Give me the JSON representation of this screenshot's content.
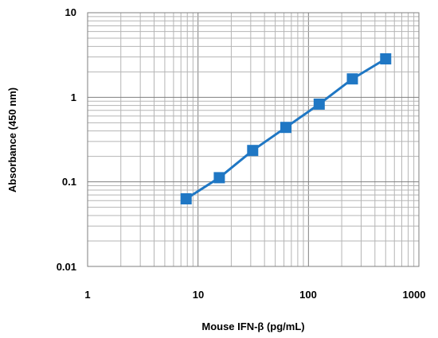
{
  "chart_data": {
    "type": "line",
    "xlabel": "Mouse IFN-β (pg/mL)",
    "ylabel": "Absorbance (450 nm)",
    "x_scale": "log",
    "y_scale": "log",
    "xlim": [
      1,
      1000
    ],
    "ylim": [
      0.01,
      10
    ],
    "x_ticks": [
      "1",
      "10",
      "100",
      "1000"
    ],
    "y_ticks": [
      "10",
      "1",
      "0.1",
      "0.01"
    ],
    "grid": true,
    "series_color": "#1f77c4",
    "marker": "square",
    "series": [
      {
        "x": [
          7.8,
          15.6,
          31.25,
          62.5,
          125,
          250,
          500
        ],
        "y": [
          0.063,
          0.112,
          0.235,
          0.44,
          0.83,
          1.65,
          2.85
        ]
      }
    ]
  }
}
